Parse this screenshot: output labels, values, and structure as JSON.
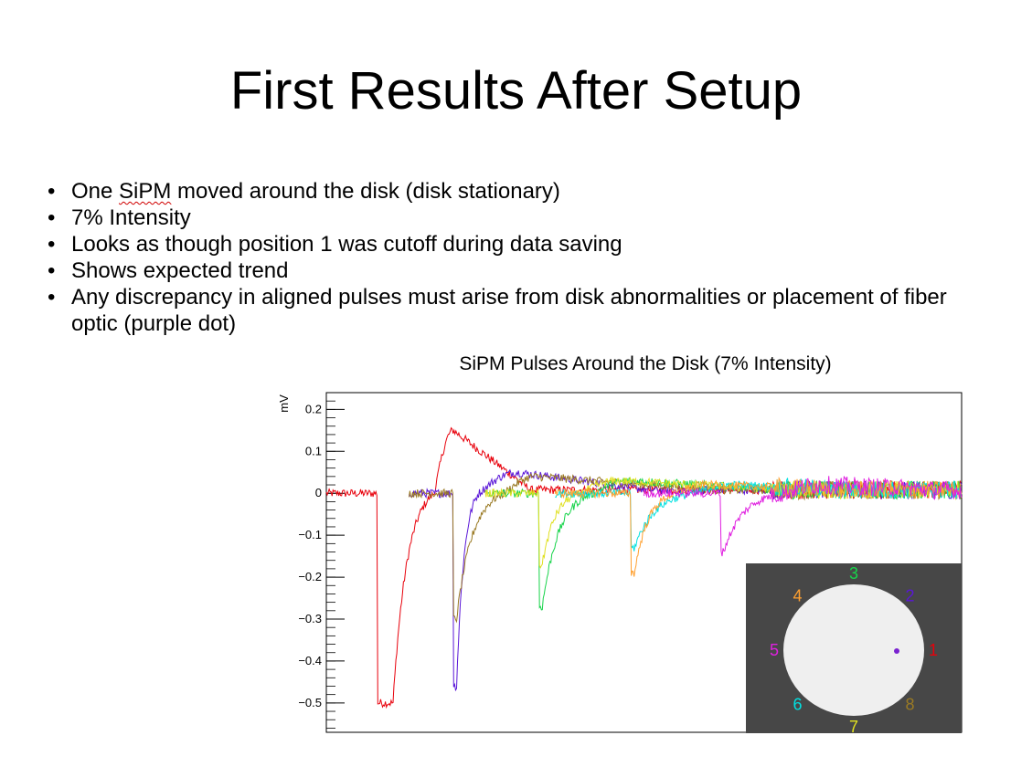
{
  "slide": {
    "title": "First Results After Setup",
    "bullets": [
      {
        "pre": "One ",
        "flagged": "SiPM",
        "post": " moved around the disk (disk stationary)"
      },
      {
        "pre": "7% Intensity",
        "flagged": "",
        "post": ""
      },
      {
        "pre": "Looks as though position 1 was cutoff during data saving",
        "flagged": "",
        "post": ""
      },
      {
        "pre": "Shows expected trend",
        "flagged": "",
        "post": ""
      },
      {
        "pre": "Any discrepancy in aligned pulses must arise from disk abnormalities or placement of fiber optic (purple dot)",
        "flagged": "",
        "post": ""
      }
    ],
    "bullet_glyph": "•"
  },
  "chart_data": {
    "type": "line",
    "title": "SiPM Pulses Around the Disk (7% Intensity)",
    "ylabel": "mV",
    "xlabel": "",
    "ylim": [
      -0.57,
      0.24
    ],
    "y_ticks": [
      0.2,
      0.1,
      0,
      -0.1,
      -0.2,
      -0.3,
      -0.4,
      -0.5
    ],
    "y_tick_labels": [
      "0.2",
      "0.1",
      "0",
      "−0.1",
      "−0.2",
      "−0.3",
      "−0.4",
      "−0.5"
    ],
    "xlim": [
      0,
      1
    ],
    "grid": false,
    "series": [
      {
        "color": "#e8000b",
        "baseline_start": 0.0,
        "drop_x": 0.08,
        "min_y": -0.5,
        "flat_until": 0.105,
        "recover_x": 0.17,
        "overshoot_y": 0.15,
        "overshoot_x": 0.2,
        "decay_end": 0.32
      },
      {
        "color": "#5a16d8",
        "baseline_start": 0.13,
        "drop_x": 0.2,
        "min_y": -0.46,
        "flat_until": 0.205,
        "recover_x": 0.24,
        "overshoot_y": 0.05,
        "overshoot_x": 0.3,
        "decay_end": 0.5
      },
      {
        "color": "#9a7a24",
        "baseline_start": 0.13,
        "drop_x": 0.2,
        "min_y": -0.3,
        "flat_until": 0.205,
        "recover_x": 0.28,
        "overshoot_y": 0.04,
        "overshoot_x": 0.33,
        "decay_end": 0.6
      },
      {
        "color": "#17d44a",
        "baseline_start": 0.25,
        "drop_x": 0.335,
        "min_y": -0.27,
        "flat_until": 0.34,
        "recover_x": 0.42,
        "overshoot_y": 0.03,
        "overshoot_x": 0.48,
        "decay_end": 0.7
      },
      {
        "color": "#e0e020",
        "baseline_start": 0.25,
        "drop_x": 0.335,
        "min_y": -0.17,
        "flat_until": 0.34,
        "recover_x": 0.4,
        "overshoot_y": 0.03,
        "overshoot_x": 0.46,
        "decay_end": 0.7
      },
      {
        "color": "#00e0e0",
        "baseline_start": 0.36,
        "drop_x": 0.48,
        "min_y": -0.13,
        "flat_until": 0.485,
        "recover_x": 0.58,
        "overshoot_y": 0.02,
        "overshoot_x": 0.64,
        "decay_end": 0.8
      },
      {
        "color": "#ffa030",
        "baseline_start": 0.36,
        "drop_x": 0.48,
        "min_y": -0.19,
        "flat_until": 0.485,
        "recover_x": 0.55,
        "overshoot_y": 0.02,
        "overshoot_x": 0.6,
        "decay_end": 0.8
      },
      {
        "color": "#e020e0",
        "baseline_start": 0.5,
        "drop_x": 0.62,
        "min_y": -0.14,
        "flat_until": 0.625,
        "recover_x": 0.72,
        "overshoot_y": 0.02,
        "overshoot_x": 0.78,
        "decay_end": 0.95
      }
    ]
  },
  "inset": {
    "background": "#474747",
    "disk_color": "#efefef",
    "dot_color": "#7a22d0",
    "positions": [
      {
        "label": "1",
        "color": "#e8000b",
        "angle": 0
      },
      {
        "label": "2",
        "color": "#5a16d8",
        "angle": 45
      },
      {
        "label": "3",
        "color": "#17d44a",
        "angle": 90
      },
      {
        "label": "4",
        "color": "#ffa030",
        "angle": 135
      },
      {
        "label": "5",
        "color": "#e020e0",
        "angle": 180
      },
      {
        "label": "6",
        "color": "#00e0e0",
        "angle": 225
      },
      {
        "label": "7",
        "color": "#e0e020",
        "angle": 270
      },
      {
        "label": "8",
        "color": "#9a7a24",
        "angle": 315
      }
    ]
  }
}
